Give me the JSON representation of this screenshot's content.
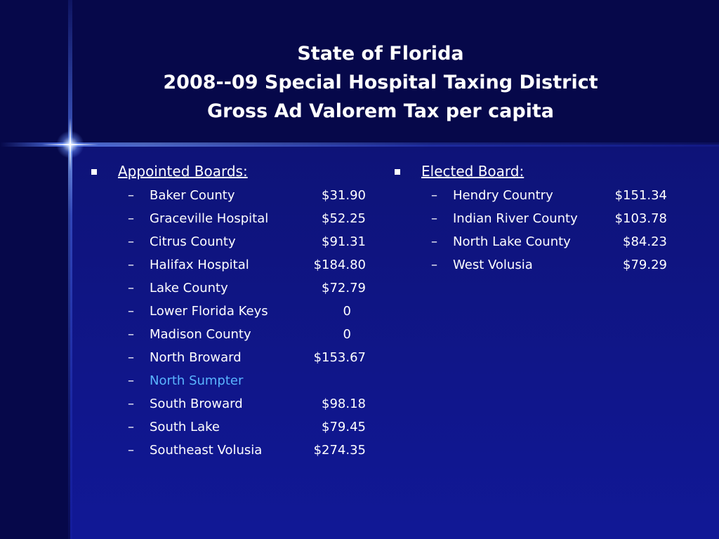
{
  "title": {
    "line1": "State of Florida",
    "line2": "2008--09 Special Hospital Taxing District",
    "line3": "Gross Ad Valorem Tax per capita"
  },
  "appointed": {
    "heading": "Appointed Boards:",
    "items": [
      {
        "name": "Baker County",
        "value": "$31.90"
      },
      {
        "name": "Graceville Hospital",
        "value": "$52.25"
      },
      {
        "name": "Citrus County",
        "value": "$91.31"
      },
      {
        "name": "Halifax Hospital",
        "value": "$184.80"
      },
      {
        "name": "Lake County",
        "value": "$72.79"
      },
      {
        "name": "Lower Florida Keys",
        "value": "0"
      },
      {
        "name": "Madison County",
        "value": "0"
      },
      {
        "name": "North Broward",
        "value": "$153.67"
      },
      {
        "name": "North Sumpter",
        "value": ""
      },
      {
        "name": "South Broward",
        "value": "$98.18"
      },
      {
        "name": "South Lake",
        "value": "$79.45"
      },
      {
        "name": "Southeast Volusia",
        "value": "$274.35"
      }
    ]
  },
  "elected": {
    "heading": "Elected Board:",
    "items": [
      {
        "name": "Hendry Country",
        "value": "$151.34"
      },
      {
        "name": "Indian River County",
        "value": "$103.78"
      },
      {
        "name": "North Lake County",
        "value": "$84.23"
      },
      {
        "name": "West Volusia",
        "value": "$79.29"
      }
    ]
  },
  "bullet_glyph": "–",
  "colors": {
    "background": "#0b0d58",
    "title_band": "#06084a",
    "text": "#ffffff",
    "link": "#5ab4ff"
  }
}
